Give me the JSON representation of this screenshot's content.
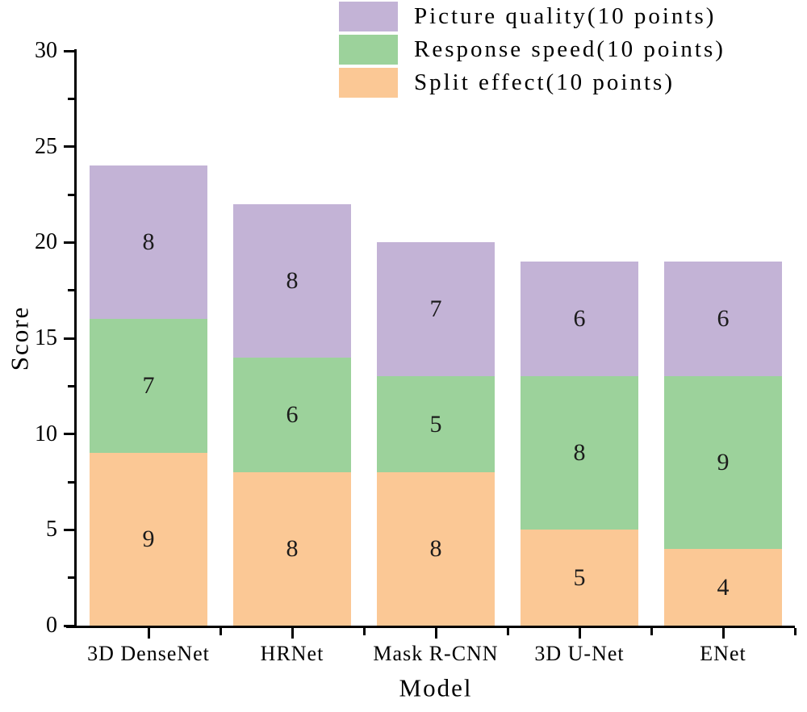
{
  "chart_data": {
    "type": "bar",
    "stacked": true,
    "title": "",
    "xlabel": "Model",
    "ylabel": "Score",
    "ylim": [
      0,
      30
    ],
    "yticks_major": [
      0,
      5,
      10,
      15,
      20,
      25,
      30
    ],
    "yticks_minor": [
      2.5,
      7.5,
      12.5,
      17.5,
      22.5,
      27.5
    ],
    "grid": false,
    "categories": [
      "3D DenseNet",
      "HRNet",
      "Mask R-CNN",
      "3D U-Net",
      "ENet"
    ],
    "series": [
      {
        "name": "Split effect(10 points)",
        "color": "#fbc895",
        "values": [
          9,
          8,
          8,
          5,
          4
        ]
      },
      {
        "name": "Response speed(10 points)",
        "color": "#9cd29b",
        "values": [
          7,
          6,
          5,
          8,
          9
        ]
      },
      {
        "name": "Picture quality(10 points)",
        "color": "#c3b3d6",
        "values": [
          8,
          8,
          7,
          6,
          6
        ]
      }
    ],
    "stack_totals": [
      24,
      22,
      20,
      19,
      19
    ],
    "legend": {
      "position": "top-right",
      "entries": [
        {
          "label": "Picture quality(10 points)",
          "color": "#c3b3d6"
        },
        {
          "label": "Response speed(10 points)",
          "color": "#9cd29b"
        },
        {
          "label": "Split effect(10 points)",
          "color": "#fbc895"
        }
      ]
    },
    "colors": {
      "axis": "#000000",
      "value_label": "#1b1b1b",
      "background": "#ffffff"
    }
  }
}
